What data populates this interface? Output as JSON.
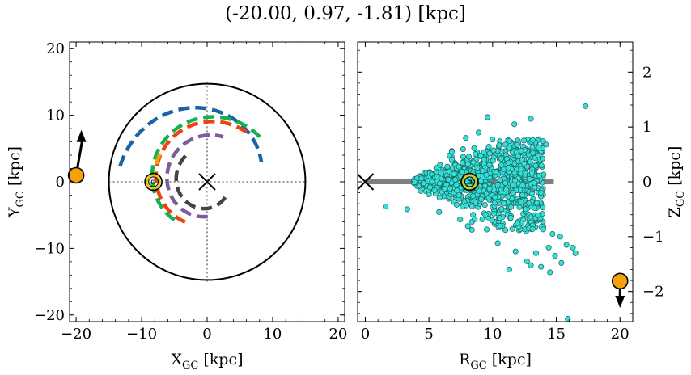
{
  "title": "(-20.00, 0.97, -1.81) [kpc]",
  "colors": {
    "blue": "#1a64a6",
    "green": "#10b350",
    "red": "#f0420e",
    "purple": "#7b5c9c",
    "dark": "#444444",
    "orange": "#f5a10a",
    "cyan": "#33e0d8",
    "grey": "#7f7f7f"
  },
  "chart_data": [
    {
      "type": "scatter",
      "panel": "left",
      "xlabel": "X",
      "xlabel_sub": "GC",
      "xlabel_unit": " [kpc]",
      "ylabel": "Y",
      "ylabel_sub": "GC",
      "ylabel_unit": " [kpc]",
      "xlim": [
        -21,
        21
      ],
      "ylim": [
        -21,
        21
      ],
      "xticks": [
        -20,
        -10,
        0,
        10,
        20
      ],
      "yticks": [
        -20,
        -10,
        0,
        10,
        20
      ],
      "xticklabels": [
        "−20",
        "−10",
        "0",
        "10",
        "20"
      ],
      "yticklabels": [
        "−20",
        "−10",
        "0",
        "10",
        "20"
      ],
      "disk_radius": 15,
      "galactic_center": [
        0,
        0
      ],
      "sun": [
        -8.2,
        0
      ],
      "observer": {
        "x": -20.0,
        "y": 0.97,
        "arrow_to": [
          -19.2,
          7.8
        ]
      },
      "spiral_arms": [
        {
          "color": "blue",
          "r_start": 13.5,
          "r_end": 8.8,
          "ang_start": 170,
          "ang_end": 20
        },
        {
          "color": "green",
          "r_start": 7.6,
          "r_end": 10.5,
          "ang_start": 229,
          "ang_end": 40
        },
        {
          "color": "red",
          "r_start": 6.9,
          "r_end": 9.6,
          "ang_start": 241,
          "ang_end": 50
        },
        {
          "color": "purple",
          "r_start": 5.2,
          "r_end": 7.2,
          "ang_start": 271,
          "ang_end": 70
        },
        {
          "color": "dark",
          "r_start": 3.6,
          "r_end": 5.1,
          "ang_start": 320,
          "ang_end": 130
        },
        {
          "color": "orange",
          "r_start": 8.2,
          "r_end": 8.4,
          "ang_start": 161,
          "ang_end": 145
        }
      ]
    },
    {
      "type": "scatter",
      "panel": "right",
      "xlabel": "R",
      "xlabel_sub": "GC",
      "xlabel_unit": " [kpc]",
      "ylabel": "Z",
      "ylabel_sub": "GC",
      "ylabel_unit": " [kpc]",
      "xlim": [
        -0.6,
        21
      ],
      "ylim": [
        -2.55,
        2.55
      ],
      "xticks": [
        0,
        5,
        10,
        15,
        20
      ],
      "yticks": [
        -2,
        -1,
        0,
        1,
        2
      ],
      "xticklabels": [
        "0",
        "5",
        "10",
        "15",
        "20"
      ],
      "yticklabels": [
        "−2",
        "−1",
        "0",
        "1",
        "2"
      ],
      "disk_band": {
        "r_from": 0,
        "r_to": 14.8,
        "z": 0
      },
      "galactic_center": [
        0,
        0
      ],
      "sun": [
        8.2,
        0
      ],
      "observer": {
        "r": 20.0,
        "z": -1.81,
        "arrow_to": [
          20.0,
          -2.3
        ]
      },
      "stars_cluster": {
        "r_min": 3.8,
        "r_max": 14,
        "count": 1000
      },
      "stars_outliers": [
        [
          17.3,
          1.38
        ],
        [
          9.6,
          1.18
        ],
        [
          13.0,
          1.15
        ],
        [
          11.7,
          1.05
        ],
        [
          8.9,
          0.9
        ],
        [
          14.2,
          0.68
        ],
        [
          6.8,
          0.55
        ],
        [
          7.9,
          0.8
        ],
        [
          1.6,
          -0.45
        ],
        [
          3.3,
          -0.5
        ],
        [
          5.8,
          -0.55
        ],
        [
          14.7,
          -0.95
        ],
        [
          15.3,
          -1.0
        ],
        [
          14.4,
          -1.2
        ],
        [
          15.8,
          -1.15
        ],
        [
          16.3,
          -1.2
        ],
        [
          13.4,
          -1.3
        ],
        [
          14.9,
          -1.35
        ],
        [
          12.7,
          -1.45
        ],
        [
          16.5,
          -1.3
        ],
        [
          10.4,
          -1.12
        ],
        [
          11.8,
          -1.27
        ],
        [
          13.8,
          -1.55
        ],
        [
          11.3,
          -1.6
        ],
        [
          14.5,
          -1.65
        ],
        [
          13.0,
          -1.52
        ],
        [
          15.4,
          -1.48
        ],
        [
          15.9,
          -2.5
        ]
      ]
    }
  ]
}
